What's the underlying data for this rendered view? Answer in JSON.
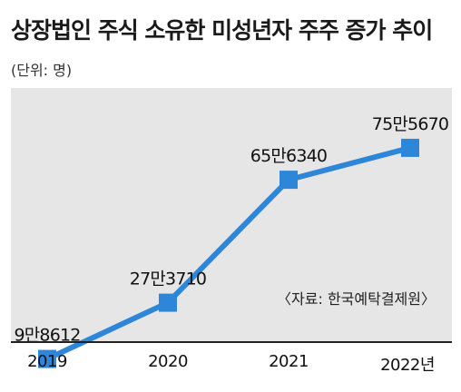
{
  "chart_data": {
    "type": "line",
    "title": "상장법인 주식 소유한 미성년자 주주 증가 추이",
    "unit_label": "(단위: 명)",
    "source": "〈자료: 한국예탁결제원〉",
    "categories": [
      "2019",
      "2020",
      "2021",
      "2022"
    ],
    "x_tick_labels": [
      "2019",
      "2020",
      "2021",
      "2022년"
    ],
    "values": [
      98612,
      273710,
      656340,
      755670
    ],
    "data_labels": [
      "9만8612",
      "27만3710",
      "65만6340",
      "75만5670"
    ],
    "line_color": "#2d86d8",
    "marker_color": "#2d86d8",
    "background_color": "#e6e6e6",
    "grid": false
  }
}
